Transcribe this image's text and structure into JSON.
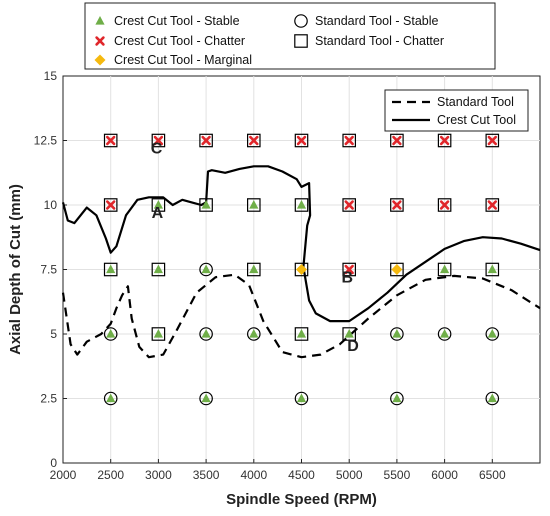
{
  "chart_data": {
    "type": "scatter",
    "title": "",
    "xlabel": "Spindle Speed (RPM)",
    "ylabel": "Axial Depth of Cut (mm)",
    "xlim": [
      2000,
      7000
    ],
    "ylim": [
      0,
      15
    ],
    "xticks": [
      2000,
      2500,
      3000,
      3500,
      4000,
      4500,
      5000,
      5500,
      6000,
      6500
    ],
    "yticks": [
      0,
      2.5,
      5,
      7.5,
      10,
      12.5,
      15
    ],
    "tick_labels_x": [
      "2000",
      "2500",
      "3000",
      "3500",
      "4000",
      "4500",
      "5000",
      "5500",
      "6000",
      "6500"
    ],
    "tick_labels_y": [
      "0",
      "2.5",
      "5",
      "7.5",
      "10",
      "12.5",
      "15"
    ],
    "grid": true,
    "legend_top": {
      "placement": "top-center",
      "entries": [
        {
          "label": "Crest Cut Tool - Stable",
          "marker": "triangle",
          "color": "#6fae48"
        },
        {
          "label": "Standard Tool - Stable",
          "marker": "circle",
          "color": "#000000"
        },
        {
          "label": "Crest Cut Tool - Chatter",
          "marker": "cross",
          "color": "#e0262b"
        },
        {
          "label": "Standard Tool - Chatter",
          "marker": "square",
          "color": "#000000"
        },
        {
          "label": "Crest Cut Tool - Marginal",
          "marker": "diamond",
          "color": "#f5b90f"
        }
      ]
    },
    "legend_lines": {
      "placement": "top-right",
      "entries": [
        {
          "label": "Standard Tool",
          "style": "dashed"
        },
        {
          "label": "Crest Cut Tool",
          "style": "solid"
        }
      ]
    },
    "series": [
      {
        "name": "Crest Cut Tool - Stable",
        "marker": "triangle",
        "color": "#6fae48",
        "points": [
          [
            2500,
            2.5
          ],
          [
            3500,
            2.5
          ],
          [
            4500,
            2.5
          ],
          [
            5500,
            2.5
          ],
          [
            6500,
            2.5
          ],
          [
            2500,
            5
          ],
          [
            3000,
            5
          ],
          [
            3500,
            5
          ],
          [
            4000,
            5
          ],
          [
            4500,
            5
          ],
          [
            5000,
            5
          ],
          [
            5500,
            5
          ],
          [
            6000,
            5
          ],
          [
            6500,
            5
          ],
          [
            2500,
            7.5
          ],
          [
            3000,
            7.5
          ],
          [
            3500,
            7.5
          ],
          [
            4000,
            7.5
          ],
          [
            6000,
            7.5
          ],
          [
            6500,
            7.5
          ],
          [
            3000,
            10
          ],
          [
            3500,
            10
          ],
          [
            4000,
            10
          ],
          [
            4500,
            10
          ]
        ]
      },
      {
        "name": "Crest Cut Tool - Chatter",
        "marker": "cross",
        "color": "#e0262b",
        "points": [
          [
            5000,
            7.5
          ],
          [
            2500,
            10
          ],
          [
            5000,
            10
          ],
          [
            5500,
            10
          ],
          [
            6000,
            10
          ],
          [
            6500,
            10
          ],
          [
            2500,
            12.5
          ],
          [
            3000,
            12.5
          ],
          [
            3500,
            12.5
          ],
          [
            4000,
            12.5
          ],
          [
            4500,
            12.5
          ],
          [
            5000,
            12.5
          ],
          [
            5500,
            12.5
          ],
          [
            6000,
            12.5
          ],
          [
            6500,
            12.5
          ]
        ]
      },
      {
        "name": "Crest Cut Tool - Marginal",
        "marker": "diamond",
        "color": "#f5b90f",
        "points": [
          [
            4500,
            7.5
          ],
          [
            5500,
            7.5
          ]
        ]
      },
      {
        "name": "Standard Tool - Stable",
        "marker": "circle",
        "color": "#000000",
        "points": [
          [
            2500,
            2.5
          ],
          [
            3500,
            2.5
          ],
          [
            4500,
            2.5
          ],
          [
            5500,
            2.5
          ],
          [
            6500,
            2.5
          ],
          [
            2500,
            5
          ],
          [
            3500,
            5
          ],
          [
            4000,
            5
          ],
          [
            5500,
            5
          ],
          [
            6000,
            5
          ],
          [
            6500,
            5
          ],
          [
            3500,
            7.5
          ]
        ]
      },
      {
        "name": "Standard Tool - Chatter",
        "marker": "square",
        "color": "#000000",
        "points": [
          [
            3000,
            5
          ],
          [
            4500,
            5
          ],
          [
            5000,
            5
          ],
          [
            2500,
            7.5
          ],
          [
            3000,
            7.5
          ],
          [
            4000,
            7.5
          ],
          [
            4500,
            7.5
          ],
          [
            5000,
            7.5
          ],
          [
            5500,
            7.5
          ],
          [
            6000,
            7.5
          ],
          [
            6500,
            7.5
          ],
          [
            2500,
            10
          ],
          [
            3000,
            10
          ],
          [
            3500,
            10
          ],
          [
            4000,
            10
          ],
          [
            4500,
            10
          ],
          [
            5000,
            10
          ],
          [
            5500,
            10
          ],
          [
            6000,
            10
          ],
          [
            6500,
            10
          ],
          [
            2500,
            12.5
          ],
          [
            3000,
            12.5
          ],
          [
            3500,
            12.5
          ],
          [
            4000,
            12.5
          ],
          [
            4500,
            12.5
          ],
          [
            5000,
            12.5
          ],
          [
            5500,
            12.5
          ],
          [
            6000,
            12.5
          ],
          [
            6500,
            12.5
          ]
        ]
      }
    ],
    "lines": [
      {
        "name": "Standard Tool",
        "style": "dashed",
        "points": [
          [
            2000,
            6.6
          ],
          [
            2080,
            4.6
          ],
          [
            2150,
            4.2
          ],
          [
            2250,
            4.7
          ],
          [
            2400,
            5.0
          ],
          [
            2500,
            5.4
          ],
          [
            2560,
            6.0
          ],
          [
            2620,
            6.5
          ],
          [
            2680,
            6.85
          ],
          [
            2720,
            5.6
          ],
          [
            2800,
            4.5
          ],
          [
            2900,
            4.1
          ],
          [
            3050,
            4.2
          ],
          [
            3200,
            5.2
          ],
          [
            3400,
            6.6
          ],
          [
            3600,
            7.2
          ],
          [
            3800,
            7.3
          ],
          [
            3950,
            6.9
          ],
          [
            4100,
            5.5
          ],
          [
            4300,
            4.3
          ],
          [
            4500,
            4.1
          ],
          [
            4700,
            4.2
          ],
          [
            4900,
            4.6
          ],
          [
            5200,
            5.6
          ],
          [
            5500,
            6.5
          ],
          [
            5800,
            7.1
          ],
          [
            6100,
            7.25
          ],
          [
            6400,
            7.15
          ],
          [
            6700,
            6.7
          ],
          [
            7000,
            6.0
          ]
        ]
      },
      {
        "name": "Crest Cut Tool",
        "style": "solid",
        "points": [
          [
            2000,
            10.1
          ],
          [
            2050,
            9.4
          ],
          [
            2120,
            9.3
          ],
          [
            2250,
            9.9
          ],
          [
            2350,
            9.6
          ],
          [
            2450,
            8.7
          ],
          [
            2500,
            8.15
          ],
          [
            2560,
            8.4
          ],
          [
            2660,
            9.6
          ],
          [
            2780,
            10.2
          ],
          [
            2900,
            10.3
          ],
          [
            3050,
            10.3
          ],
          [
            3150,
            10.0
          ],
          [
            3250,
            10.2
          ],
          [
            3350,
            10.1
          ],
          [
            3450,
            10.0
          ],
          [
            3500,
            10.1
          ],
          [
            3520,
            11.3
          ],
          [
            3560,
            11.35
          ],
          [
            3700,
            11.25
          ],
          [
            3850,
            11.4
          ],
          [
            4000,
            11.5
          ],
          [
            4150,
            11.5
          ],
          [
            4300,
            11.3
          ],
          [
            4450,
            11.0
          ],
          [
            4500,
            10.7
          ],
          [
            4580,
            10.85
          ],
          [
            4590,
            9.6
          ],
          [
            4560,
            9.2
          ],
          [
            4520,
            7.6
          ],
          [
            4580,
            6.3
          ],
          [
            4650,
            5.8
          ],
          [
            4800,
            5.5
          ],
          [
            5000,
            5.5
          ],
          [
            5200,
            6.0
          ],
          [
            5400,
            6.6
          ],
          [
            5600,
            7.3
          ],
          [
            5800,
            7.8
          ],
          [
            6000,
            8.3
          ],
          [
            6200,
            8.6
          ],
          [
            6400,
            8.75
          ],
          [
            6600,
            8.7
          ],
          [
            6800,
            8.5
          ],
          [
            7000,
            8.25
          ]
        ]
      }
    ],
    "annotations": [
      {
        "text": "A",
        "x": 2990,
        "y": 9.5
      },
      {
        "text": "B",
        "x": 4980,
        "y": 7.0
      },
      {
        "text": "C",
        "x": 2980,
        "y": 12.0
      },
      {
        "text": "D",
        "x": 5040,
        "y": 4.35
      }
    ]
  }
}
